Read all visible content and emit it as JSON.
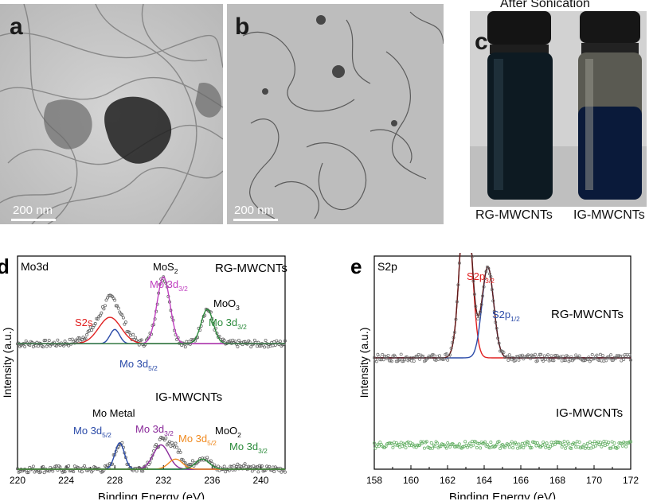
{
  "panels": {
    "a": {
      "letter": "a",
      "scalebar": "200 nm"
    },
    "b": {
      "letter": "b",
      "scalebar": "200 nm"
    },
    "c": {
      "letter": "c",
      "title": "After Sonication",
      "left_label": "RG-MWCNTs",
      "right_label": "IG-MWCNTs"
    }
  },
  "chart_data": [
    {
      "panel": "d",
      "type": "line",
      "region_label": "Mo3d",
      "xlabel": "Binding Energy (eV)",
      "ylabel": "Intensity (a.u.)",
      "xlim": [
        220,
        242
      ],
      "xticks": [
        220,
        224,
        228,
        232,
        236,
        240
      ],
      "sample_labels": [
        "RG-MWCNTs",
        "IG-MWCNTs"
      ],
      "series": [
        {
          "name": "RG-MWCNTs experimental",
          "color": "#555555",
          "baseline": 0.62,
          "peaks": [
            [
              227.8,
              0.2,
              1.2
            ],
            [
              232.0,
              0.33,
              0.75
            ],
            [
              235.6,
              0.17,
              0.7
            ],
            [
              226.5,
              0.05,
              1.5
            ]
          ]
        },
        {
          "name": "S2s",
          "color": "#e02020",
          "baseline": 0.62,
          "peaks": [
            [
              227.6,
              0.13,
              1.3
            ]
          ]
        },
        {
          "name": "Mo 3d5/2 (RG)",
          "color": "#2a4aa8",
          "baseline": 0.62,
          "peaks": [
            [
              228.0,
              0.07,
              0.55
            ]
          ]
        },
        {
          "name": "Mo 3d3/2 MoS2",
          "color": "#c040c0",
          "baseline": 0.62,
          "peaks": [
            [
              232.0,
              0.33,
              0.75
            ]
          ]
        },
        {
          "name": "Mo 3d3/2 MoO3",
          "color": "#2a8a3a",
          "baseline": 0.62,
          "peaks": [
            [
              235.6,
              0.17,
              0.7
            ]
          ]
        },
        {
          "name": "IG-MWCNTs experimental",
          "color": "#555555",
          "baseline": 0.0,
          "peaks": [
            [
              228.4,
              0.13,
              0.55
            ],
            [
              231.8,
              0.13,
              0.9
            ],
            [
              233.0,
              0.09,
              0.8
            ],
            [
              235.2,
              0.06,
              0.8
            ],
            [
              238.5,
              0.02,
              0.8
            ]
          ]
        },
        {
          "name": "Mo 3d5/2 (IG)",
          "color": "#2a4aa8",
          "baseline": 0.0,
          "peaks": [
            [
              228.4,
              0.13,
              0.55
            ]
          ]
        },
        {
          "name": "Mo 3d3/2 (IG)",
          "color": "#8a2a9a",
          "baseline": 0.0,
          "peaks": [
            [
              231.8,
              0.12,
              0.9
            ]
          ]
        },
        {
          "name": "Mo 3d5/2 MoO2",
          "color": "#f08a20",
          "baseline": 0.0,
          "peaks": [
            [
              233.0,
              0.05,
              0.8
            ]
          ]
        },
        {
          "name": "Mo 3d3/2 MoO2",
          "color": "#2a8a3a",
          "baseline": 0.0,
          "peaks": [
            [
              235.2,
              0.05,
              0.8
            ]
          ]
        }
      ],
      "annotations": [
        {
          "id": "mos2",
          "text": "MoS",
          "sub": "2",
          "color": "#000000"
        },
        {
          "id": "mo3d32_mos2",
          "text": "Mo 3d",
          "sub": "3/2",
          "color": "#c040c0"
        },
        {
          "id": "moo3",
          "text": "MoO",
          "sub": "3",
          "color": "#000000"
        },
        {
          "id": "mo3d32_moo3",
          "text": "Mo 3d",
          "sub": "3/2",
          "color": "#2a8a3a"
        },
        {
          "id": "s2s",
          "text": "S2s",
          "sub": "",
          "color": "#e02020"
        },
        {
          "id": "mo3d52_rg",
          "text": "Mo 3d",
          "sub": "5/2",
          "color": "#2a4aa8"
        },
        {
          "id": "mometal",
          "text": "Mo Metal",
          "sub": "",
          "color": "#000000"
        },
        {
          "id": "mo3d52_ig",
          "text": "Mo 3d",
          "sub": "5/2",
          "color": "#2a4aa8"
        },
        {
          "id": "mo3d32_ig",
          "text": "Mo 3d",
          "sub": "3/2",
          "color": "#8a2a9a"
        },
        {
          "id": "moo2",
          "text": "MoO",
          "sub": "2",
          "color": "#000000"
        },
        {
          "id": "mo3d52_moo2",
          "text": "Mo 3d",
          "sub": "5/2",
          "color": "#f08a20"
        },
        {
          "id": "mo3d32_moo2",
          "text": "Mo 3d",
          "sub": "3/2",
          "color": "#2a8a3a"
        }
      ]
    },
    {
      "panel": "e",
      "type": "line",
      "region_label": "S2p",
      "xlabel": "Binding Energy (eV)",
      "ylabel": "Intensity (a.u.)",
      "xlim": [
        158,
        172
      ],
      "xticks": [
        158,
        160,
        162,
        164,
        166,
        168,
        170,
        172
      ],
      "sample_labels": [
        "RG-MWCNTs",
        "IG-MWCNTs"
      ],
      "series": [
        {
          "name": "S2p3/2",
          "color": "#e02020",
          "baseline": 0.55,
          "peaks": [
            [
              163.0,
              0.85,
              0.45
            ]
          ]
        },
        {
          "name": "S2p1/2",
          "color": "#2a4aa8",
          "baseline": 0.55,
          "peaks": [
            [
              164.2,
              0.45,
              0.45
            ]
          ]
        },
        {
          "name": "Envelope",
          "color": "#5a1a1a",
          "baseline": 0.55,
          "peaks": [
            [
              163.0,
              0.85,
              0.45
            ],
            [
              164.2,
              0.45,
              0.45
            ]
          ]
        },
        {
          "name": "RG-MWCNTs data",
          "color": "#666666",
          "baseline": 0.55,
          "peaks": [
            [
              163.0,
              0.85,
              0.45
            ],
            [
              164.2,
              0.45,
              0.45
            ]
          ]
        },
        {
          "name": "IG-MWCNTs data",
          "color": "#5aaa5a",
          "baseline": 0.12,
          "peaks": []
        }
      ],
      "annotations": [
        {
          "id": "s2p32",
          "text": "S2p",
          "sub": "3/2",
          "color": "#e02020"
        },
        {
          "id": "s2p12",
          "text": "S2p",
          "sub": "1/2",
          "color": "#2a4aa8"
        }
      ]
    }
  ],
  "panel_letters": {
    "d": "d",
    "e": "e"
  }
}
